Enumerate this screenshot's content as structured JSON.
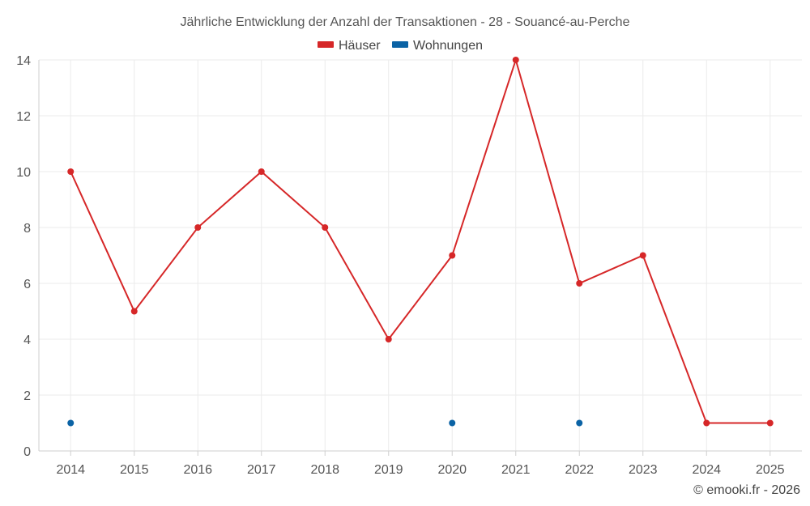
{
  "chart_data": {
    "type": "line",
    "title": "Jährliche Entwicklung der Anzahl der Transaktionen - 28 - Souancé-au-Perche",
    "categories": [
      "2014",
      "2015",
      "2016",
      "2017",
      "2018",
      "2019",
      "2020",
      "2021",
      "2022",
      "2023",
      "2024",
      "2025"
    ],
    "series": [
      {
        "name": "Häuser",
        "color": "#d62728",
        "values": [
          10,
          5,
          8,
          10,
          8,
          4,
          7,
          14,
          6,
          7,
          1,
          1
        ]
      },
      {
        "name": "Wohnungen",
        "color": "#0b63a5",
        "values": [
          1,
          null,
          null,
          null,
          null,
          null,
          1,
          null,
          1,
          null,
          null,
          null
        ]
      }
    ],
    "ylim": [
      0,
      14
    ],
    "yticks": [
      "0",
      "2",
      "4",
      "6",
      "8",
      "10",
      "12",
      "14"
    ],
    "xlabel": "",
    "ylabel": "",
    "grid": true,
    "legend_position": "top-center"
  },
  "credit": "© emooki.fr - 2026"
}
